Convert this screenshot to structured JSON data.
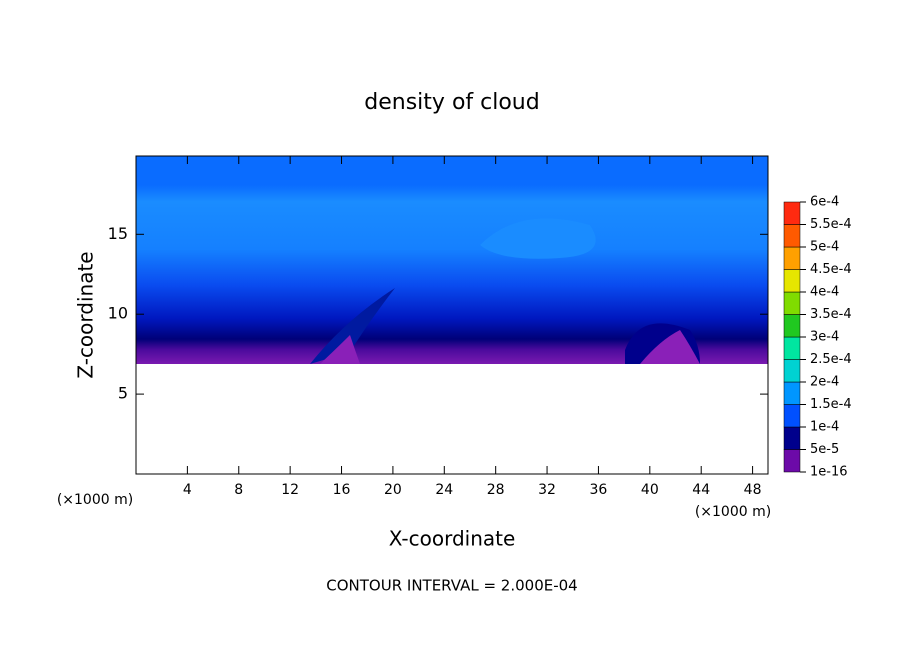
{
  "chart_data": {
    "type": "contour",
    "title": "density of cloud",
    "xlabel": "X-coordinate",
    "ylabel": "Z-coordinate",
    "axis_unit": "(×1000 m)",
    "footnote": "CONTOUR INTERVAL = 2.000E-04",
    "xlim": [
      0,
      49.2
    ],
    "ylim": [
      0,
      19.9
    ],
    "xticks": [
      4,
      8,
      12,
      16,
      20,
      24,
      28,
      32,
      36,
      40,
      44,
      48
    ],
    "yticks": [
      5,
      10,
      15
    ],
    "colorbar": {
      "ticks": [
        {
          "value": 1e-16,
          "label": "1e-16"
        },
        {
          "value": 5e-05,
          "label": "5e-5"
        },
        {
          "value": 0.0001,
          "label": "1e-4"
        },
        {
          "value": 0.00015,
          "label": "1.5e-4"
        },
        {
          "value": 0.0002,
          "label": "2e-4"
        },
        {
          "value": 0.00025,
          "label": "2.5e-4"
        },
        {
          "value": 0.0003,
          "label": "3e-4"
        },
        {
          "value": 0.00035,
          "label": "3.5e-4"
        },
        {
          "value": 0.0004,
          "label": "4e-4"
        },
        {
          "value": 0.00045,
          "label": "4.5e-4"
        },
        {
          "value": 0.0005,
          "label": "5e-4"
        },
        {
          "value": 0.00055,
          "label": "5.5e-4"
        },
        {
          "value": 0.0006,
          "label": "6e-4"
        }
      ],
      "colors": [
        "#6c0aa8",
        "#00008c",
        "#0050ff",
        "#0096ff",
        "#00d2d2",
        "#00e6a0",
        "#20c820",
        "#80dc00",
        "#e6e600",
        "#ffa000",
        "#ff5a00",
        "#ff2a10"
      ]
    }
  }
}
